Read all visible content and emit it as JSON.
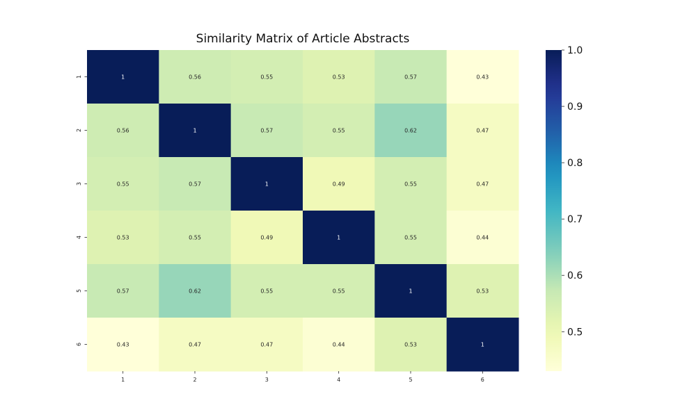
{
  "chart_data": {
    "type": "heatmap",
    "title": "Similarity Matrix of Article Abstracts",
    "xlabel": "",
    "ylabel": "",
    "x_categories": [
      "1",
      "2",
      "3",
      "4",
      "5",
      "6"
    ],
    "y_categories": [
      "1",
      "2",
      "3",
      "4",
      "5",
      "6"
    ],
    "values": [
      [
        1,
        0.56,
        0.55,
        0.53,
        0.57,
        0.43
      ],
      [
        0.56,
        1,
        0.57,
        0.55,
        0.62,
        0.47
      ],
      [
        0.55,
        0.57,
        1,
        0.49,
        0.55,
        0.47
      ],
      [
        0.53,
        0.55,
        0.49,
        1,
        0.55,
        0.44
      ],
      [
        0.57,
        0.62,
        0.55,
        0.55,
        1,
        0.53
      ],
      [
        0.43,
        0.47,
        0.47,
        0.44,
        0.53,
        1
      ]
    ],
    "annotated": true,
    "colormap": "YlGnBu",
    "colorbar": {
      "range": [
        0.43,
        1.0
      ],
      "ticks": [
        "0.5",
        "0.6",
        "0.7",
        "0.8",
        "0.9",
        "1.0"
      ],
      "position": "right"
    },
    "grid": false,
    "legend": "none"
  }
}
